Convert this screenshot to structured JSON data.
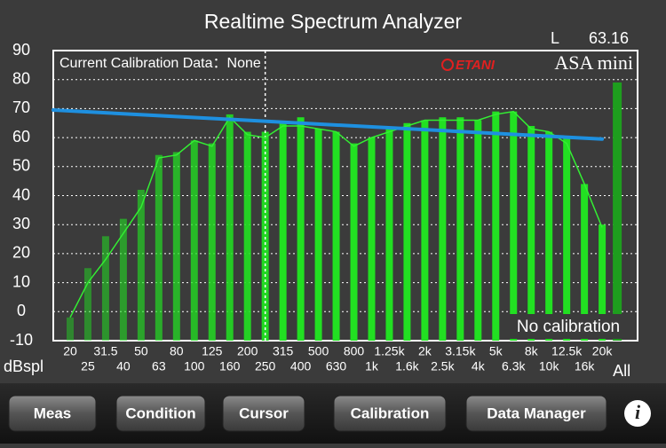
{
  "header": {
    "title": "Realtime Spectrum Analyzer",
    "channel": "L",
    "level": 63.16,
    "brand": "ETANI",
    "product": "ASA mini"
  },
  "chart_data": {
    "type": "bar",
    "calibration_text": "Current Calibration Data：None",
    "status": "No calibration",
    "y_unit": "dBspl",
    "categories": [
      "20",
      "25",
      "31.5",
      "40",
      "50",
      "63",
      "80",
      "100",
      "125",
      "160",
      "200",
      "250",
      "315",
      "400",
      "500",
      "630",
      "800",
      "1k",
      "1.25k",
      "1.6k",
      "2k",
      "2.5k",
      "3.15k",
      "4k",
      "5k",
      "6.3k",
      "8k",
      "10k",
      "12.5k",
      "16k",
      "20k"
    ],
    "series": [
      {
        "type": "bar",
        "color": "#22e022",
        "values": [
          -2,
          15,
          26,
          32,
          42,
          54,
          55,
          59,
          58,
          68,
          62,
          62,
          65,
          67,
          63,
          62,
          58,
          60,
          63,
          65,
          66,
          67,
          67,
          66,
          69,
          69,
          64,
          62,
          60,
          44,
          30
        ]
      },
      {
        "type": "line",
        "color": "#33ee33",
        "values": [
          -2,
          10,
          18,
          27,
          36,
          53,
          54,
          59,
          57,
          67,
          61,
          60,
          64,
          64,
          63,
          62,
          57,
          60,
          62,
          64,
          66,
          66,
          66,
          66,
          68,
          69,
          63,
          62,
          58,
          44,
          29
        ]
      }
    ],
    "total": {
      "label": "All",
      "value": 79,
      "color": "#1e9e1e"
    },
    "reference_line": {
      "color": "#1e90e0",
      "values": [
        69.5,
        59.5
      ]
    },
    "cursor_index": 11,
    "ylim": [
      -10,
      90
    ],
    "yticks": [
      -10,
      0,
      10,
      20,
      30,
      40,
      50,
      60,
      70,
      80,
      90
    ],
    "grid": true
  },
  "toolbar": {
    "buttons": [
      "Meas",
      "Condition",
      "Cursor",
      "Calibration",
      "Data Manager"
    ],
    "info": "i"
  }
}
